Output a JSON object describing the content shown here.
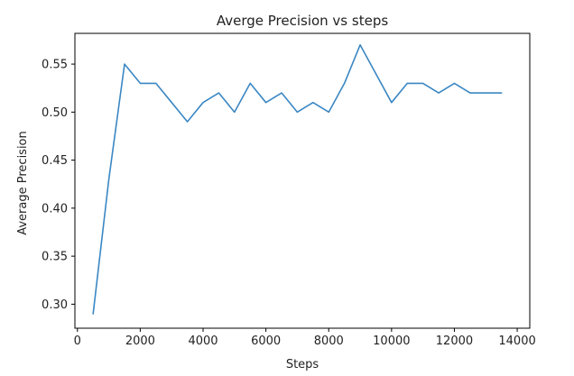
{
  "chart_data": {
    "type": "line",
    "title": "Averge Precision vs steps",
    "xlabel": "Steps",
    "ylabel": "Average Precision",
    "xlim": [
      -80,
      14400
    ],
    "ylim": [
      0.275,
      0.582
    ],
    "xticks": [
      0,
      2000,
      4000,
      6000,
      8000,
      10000,
      12000,
      14000
    ],
    "xtick_labels": [
      "0",
      "2000",
      "4000",
      "6000",
      "8000",
      "10000",
      "12000",
      "14000"
    ],
    "yticks": [
      0.3,
      0.35,
      0.4,
      0.45,
      0.5,
      0.55
    ],
    "ytick_labels": [
      "0.30",
      "0.35",
      "0.40",
      "0.45",
      "0.50",
      "0.55"
    ],
    "grid": false,
    "line_color": "#3b87c3",
    "series": [
      {
        "x": [
          500,
          1000,
          1500,
          2000,
          2500,
          3000,
          3500,
          4000,
          4500,
          5000,
          5500,
          6000,
          6500,
          7000,
          7500,
          8000,
          8500,
          9000,
          9500,
          10000,
          10500,
          11000,
          11500,
          12000,
          12500,
          13000,
          13500
        ],
        "values": [
          0.29,
          0.43,
          0.55,
          0.53,
          0.53,
          0.51,
          0.49,
          0.51,
          0.52,
          0.5,
          0.53,
          0.51,
          0.52,
          0.5,
          0.51,
          0.5,
          0.53,
          0.57,
          0.54,
          0.51,
          0.53,
          0.53,
          0.52,
          0.53,
          0.52,
          0.52,
          0.52
        ]
      }
    ]
  }
}
